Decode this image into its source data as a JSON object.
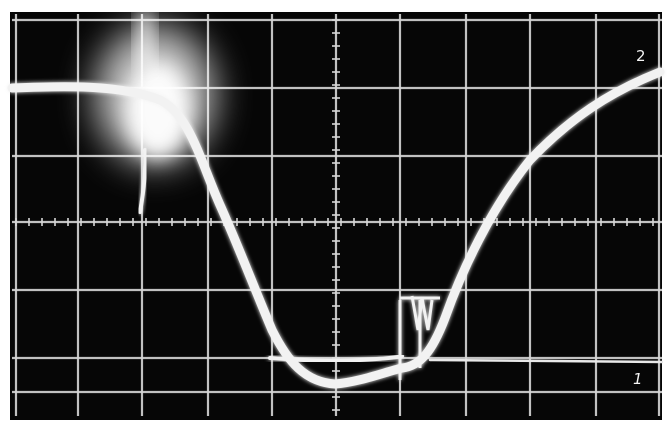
{
  "labels": {
    "trace_top": "2",
    "trace_bottom": "1"
  },
  "colors": {
    "screen": "#060606",
    "grid": "#d6d6d6",
    "trace": "#f2f2f2",
    "paper": "#ffffff"
  }
}
